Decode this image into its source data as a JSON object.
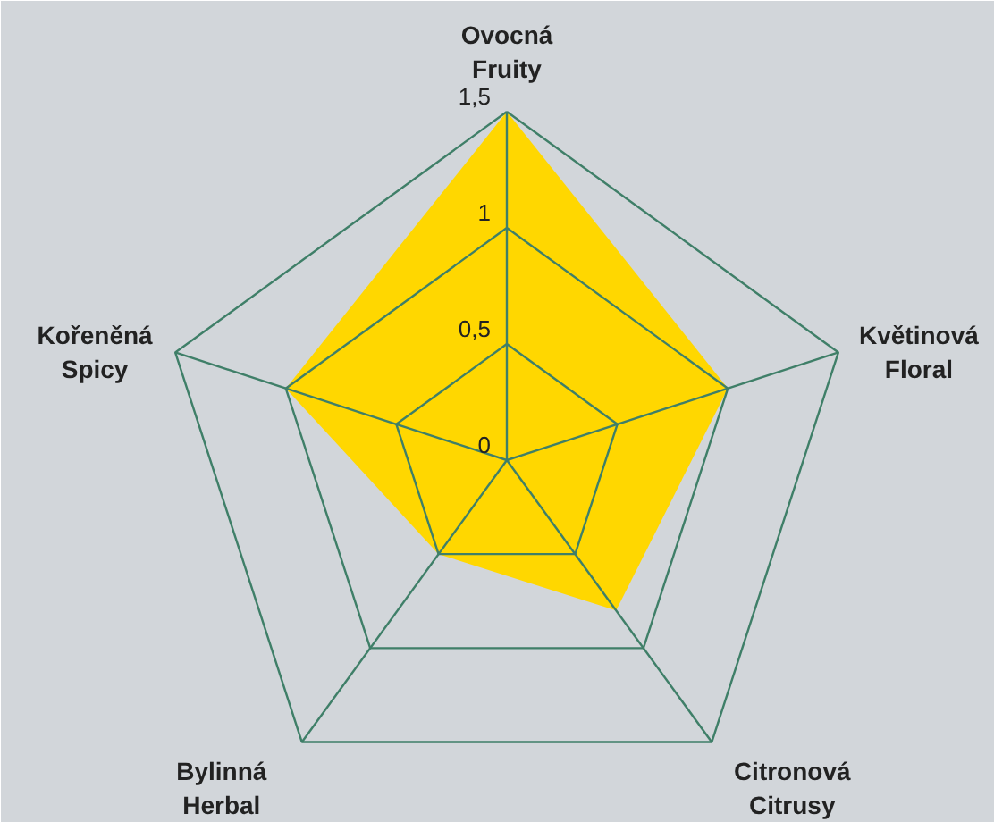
{
  "chart_data": {
    "type": "radar",
    "categories": [
      "Ovocná\nFruity",
      "Květinová\nFloral",
      "Citronová\nCitrusy",
      "Bylinná\nHerbal",
      "Kořeněná\nSpicy"
    ],
    "series": [
      {
        "color": "#ffd700",
        "values": [
          1.5,
          1.0,
          0.8,
          0.5,
          1.0
        ]
      }
    ],
    "ylim": [
      0,
      1.5
    ],
    "yticks": [
      {
        "value": 0,
        "label": "0"
      },
      {
        "value": 0.5,
        "label": "0,5"
      },
      {
        "value": 1,
        "label": "1"
      },
      {
        "value": 1.5,
        "label": "1,5"
      }
    ],
    "grid": true
  }
}
